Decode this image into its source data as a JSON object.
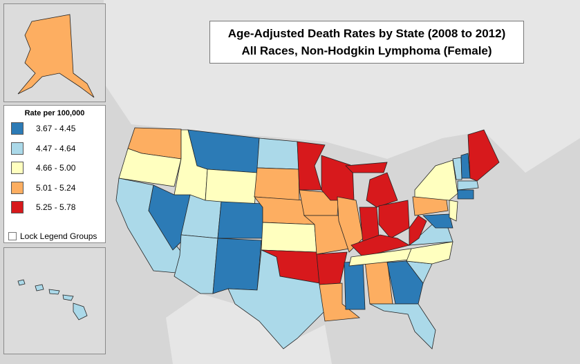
{
  "title": {
    "line1": "Age-Adjusted Death Rates by State (2008 to 2012)",
    "line2": "All Races, Non-Hodgkin Lymphoma (Female)"
  },
  "legend": {
    "title": "Rate per 100,000",
    "items": [
      {
        "label": "3.67 - 4.45",
        "color": "#2c7bb6"
      },
      {
        "label": "4.47 - 4.64",
        "color": "#abd9e9"
      },
      {
        "label": "4.66 - 5.00",
        "color": "#ffffbf"
      },
      {
        "label": "5.01 - 5.24",
        "color": "#fdae61"
      },
      {
        "label": "5.25 - 5.78",
        "color": "#d7191c"
      }
    ]
  },
  "lock_legend_groups": "Lock Legend Groups"
}
